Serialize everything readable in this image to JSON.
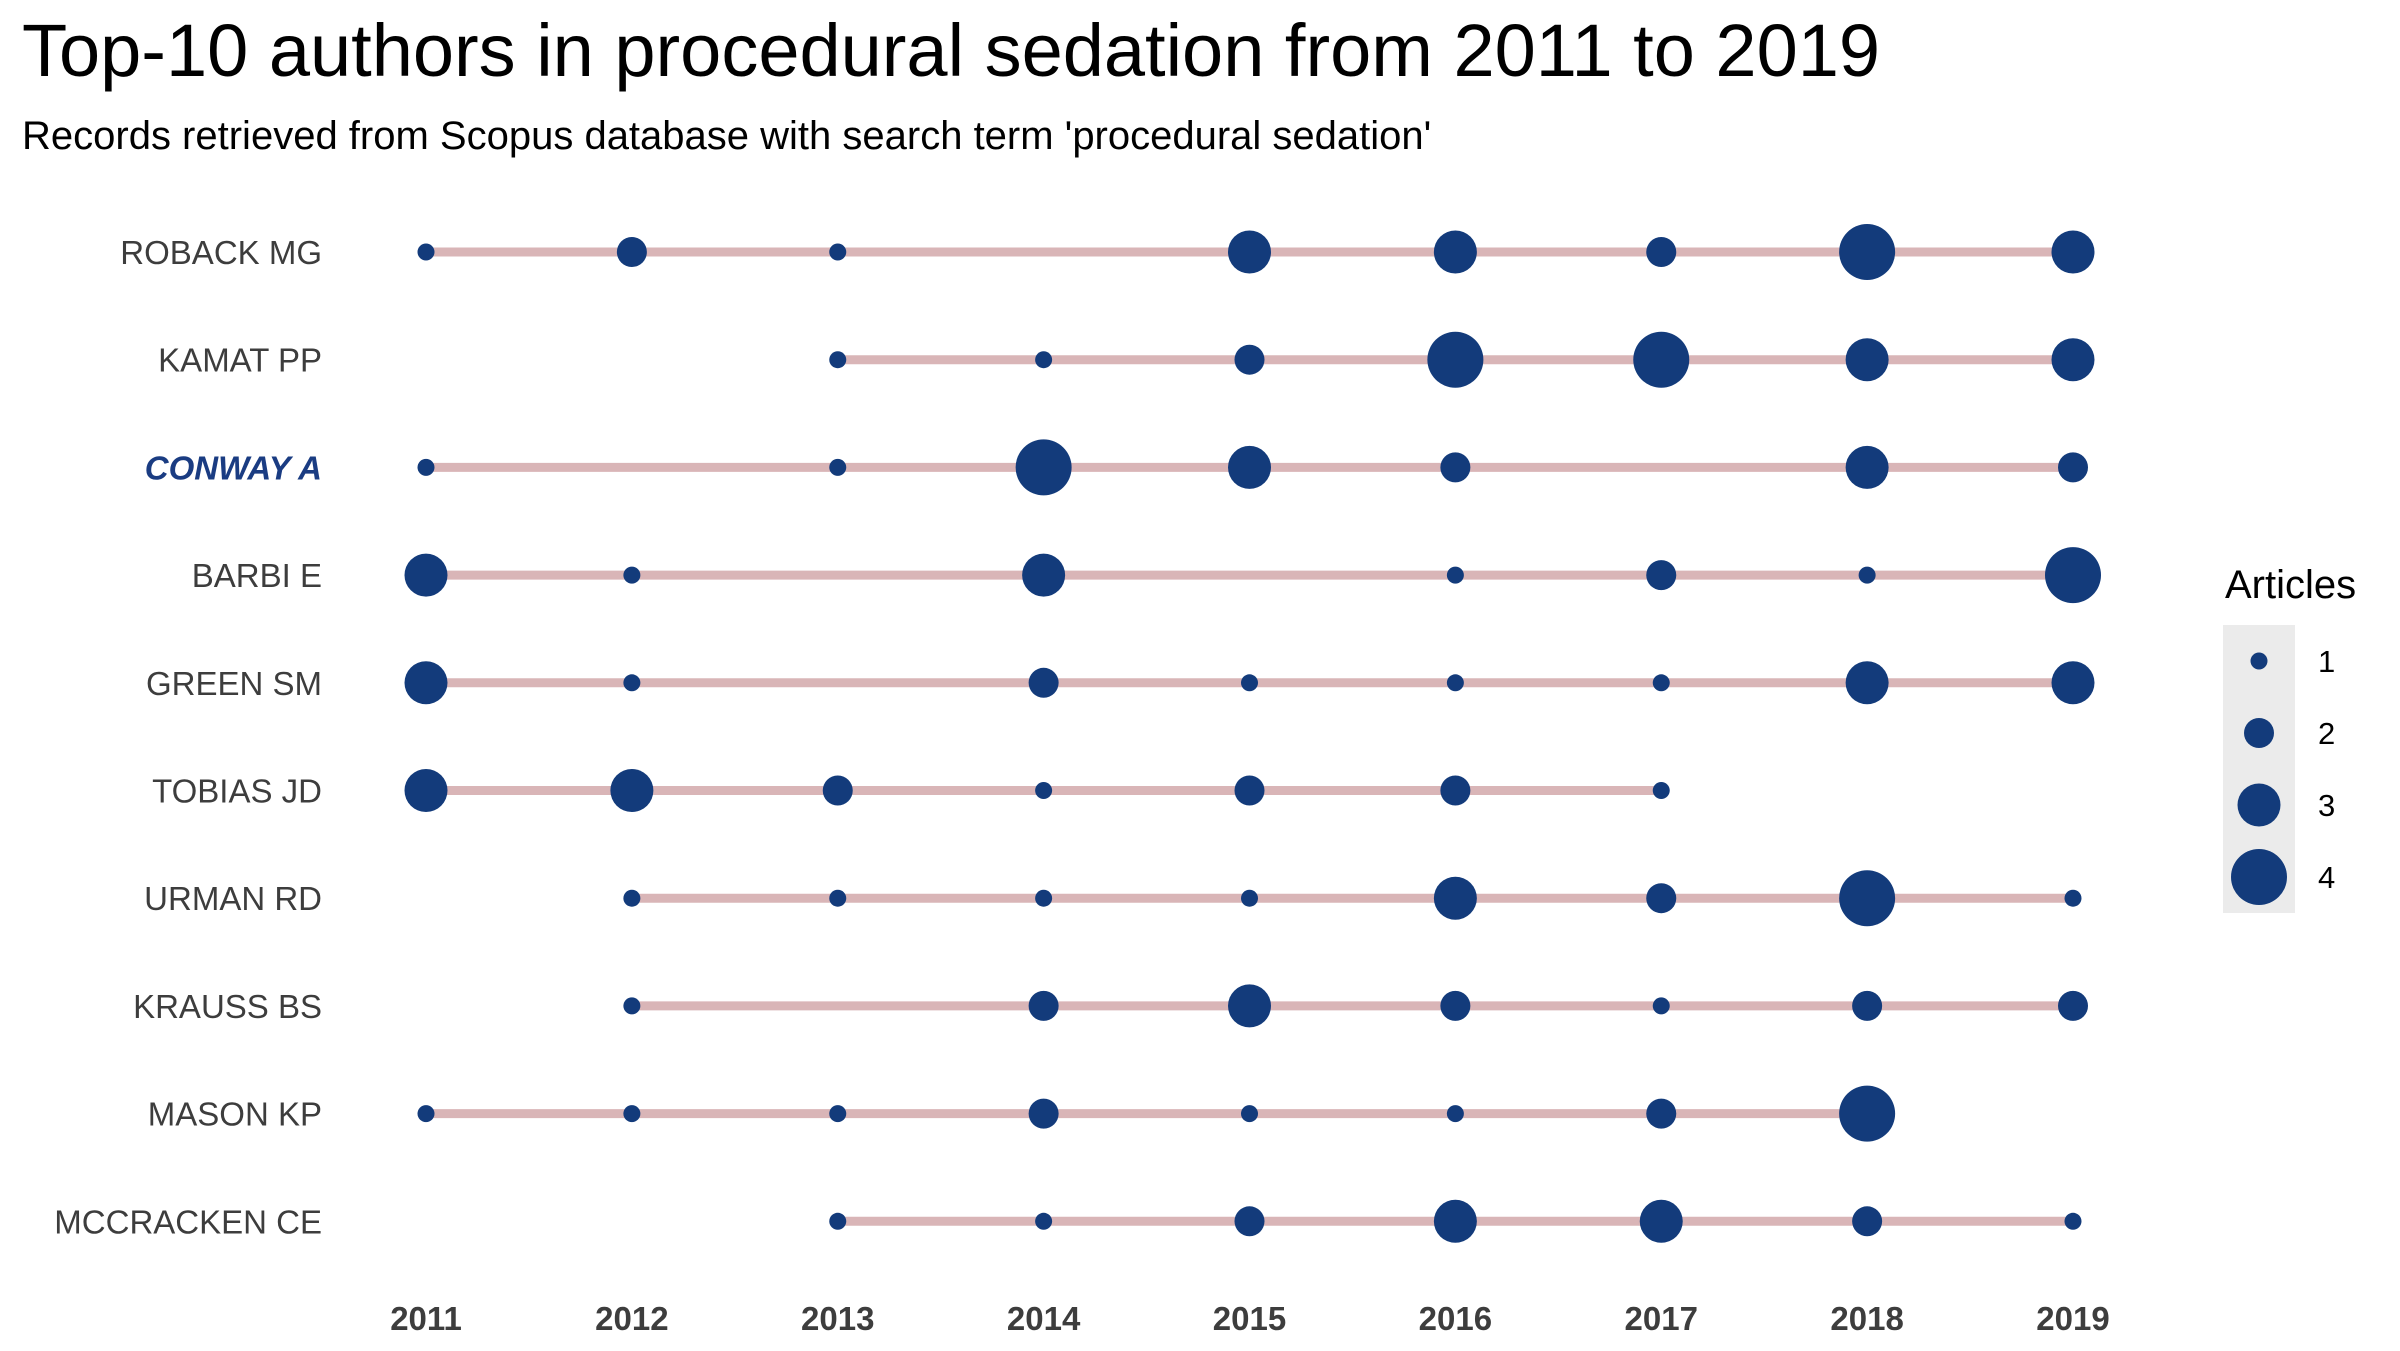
{
  "chart_data": {
    "type": "scatter",
    "title": "Top-10 authors in procedural sedation from 2011 to 2019",
    "subtitle": "Records retrieved from Scopus database with search term 'procedural sedation'",
    "x": [
      2011,
      2012,
      2013,
      2014,
      2015,
      2016,
      2017,
      2018,
      2019
    ],
    "xlabel": "",
    "ylabel": "",
    "grid": false,
    "legend": {
      "title": "Articles",
      "position": "right",
      "sizes": [
        1,
        2,
        3,
        4
      ]
    },
    "highlight": "CONWAY A",
    "colors": {
      "point": "#133b7b",
      "segment": "#d9b5b7",
      "highlight_label": "#1a3c82",
      "legend_key_bg": "#ebebeb"
    },
    "series": [
      {
        "name": "ROBACK MG",
        "points": [
          [
            2011,
            1
          ],
          [
            2012,
            2
          ],
          [
            2013,
            1
          ],
          [
            2015,
            3
          ],
          [
            2016,
            3
          ],
          [
            2017,
            2
          ],
          [
            2018,
            4
          ],
          [
            2019,
            3
          ]
        ]
      },
      {
        "name": "KAMAT PP",
        "points": [
          [
            2013,
            1
          ],
          [
            2014,
            1
          ],
          [
            2015,
            2
          ],
          [
            2016,
            4
          ],
          [
            2017,
            4
          ],
          [
            2018,
            3
          ],
          [
            2019,
            3
          ]
        ]
      },
      {
        "name": "CONWAY A",
        "points": [
          [
            2011,
            1
          ],
          [
            2013,
            1
          ],
          [
            2014,
            4
          ],
          [
            2015,
            3
          ],
          [
            2016,
            2
          ],
          [
            2018,
            3
          ],
          [
            2019,
            2
          ]
        ]
      },
      {
        "name": "BARBI E",
        "points": [
          [
            2011,
            3
          ],
          [
            2012,
            1
          ],
          [
            2014,
            3
          ],
          [
            2016,
            1
          ],
          [
            2017,
            2
          ],
          [
            2018,
            1
          ],
          [
            2019,
            4
          ]
        ]
      },
      {
        "name": "GREEN SM",
        "points": [
          [
            2011,
            3
          ],
          [
            2012,
            1
          ],
          [
            2014,
            2
          ],
          [
            2015,
            1
          ],
          [
            2016,
            1
          ],
          [
            2017,
            1
          ],
          [
            2018,
            3
          ],
          [
            2019,
            3
          ]
        ]
      },
      {
        "name": "TOBIAS JD",
        "points": [
          [
            2011,
            3
          ],
          [
            2012,
            3
          ],
          [
            2013,
            2
          ],
          [
            2014,
            1
          ],
          [
            2015,
            2
          ],
          [
            2016,
            2
          ],
          [
            2017,
            1
          ]
        ]
      },
      {
        "name": "URMAN RD",
        "points": [
          [
            2012,
            1
          ],
          [
            2013,
            1
          ],
          [
            2014,
            1
          ],
          [
            2015,
            1
          ],
          [
            2016,
            3
          ],
          [
            2017,
            2
          ],
          [
            2018,
            4
          ],
          [
            2019,
            1
          ]
        ]
      },
      {
        "name": "KRAUSS BS",
        "points": [
          [
            2012,
            1
          ],
          [
            2014,
            2
          ],
          [
            2015,
            3
          ],
          [
            2016,
            2
          ],
          [
            2017,
            1
          ],
          [
            2018,
            2
          ],
          [
            2019,
            2
          ]
        ]
      },
      {
        "name": "MASON KP",
        "points": [
          [
            2011,
            1
          ],
          [
            2012,
            1
          ],
          [
            2013,
            1
          ],
          [
            2014,
            2
          ],
          [
            2015,
            1
          ],
          [
            2016,
            1
          ],
          [
            2017,
            2
          ],
          [
            2018,
            4
          ]
        ]
      },
      {
        "name": "MCCRACKEN CE",
        "points": [
          [
            2013,
            1
          ],
          [
            2014,
            1
          ],
          [
            2015,
            2
          ],
          [
            2016,
            3
          ],
          [
            2017,
            3
          ],
          [
            2018,
            2
          ],
          [
            2019,
            1
          ]
        ]
      }
    ]
  }
}
